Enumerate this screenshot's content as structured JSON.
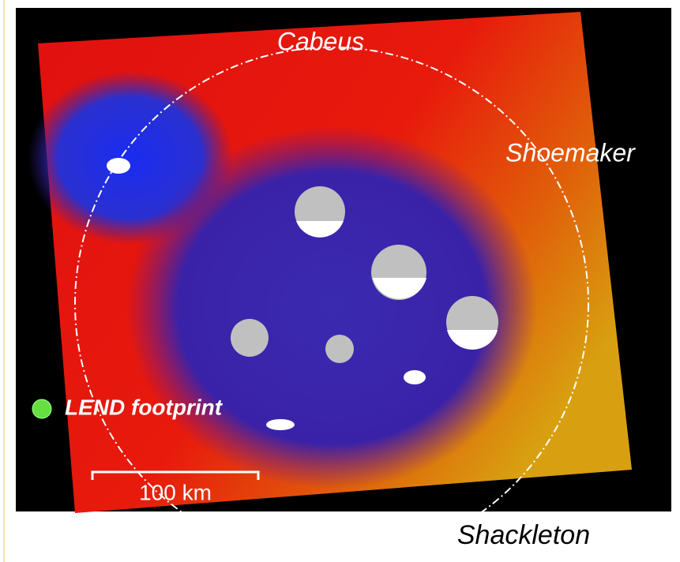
{
  "map": {
    "labels": {
      "cabeus": "Cabeus",
      "shoemaker": "Shoemaker",
      "shackleton": "Shackleton"
    },
    "legend": "LEND footprint",
    "scale_bar": "100 km"
  }
}
